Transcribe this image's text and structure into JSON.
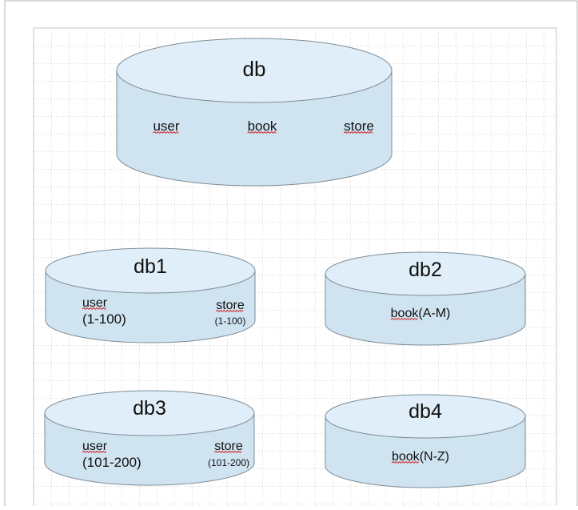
{
  "diagram": {
    "databases": [
      {
        "title": "db",
        "tables": [
          {
            "name": "user",
            "range": ""
          },
          {
            "name": "book",
            "range": ""
          },
          {
            "name": "store",
            "range": ""
          }
        ]
      },
      {
        "title": "db1",
        "tables": [
          {
            "name": "user",
            "range": "(1-100)"
          },
          {
            "name": "store",
            "range": "(1-100)"
          }
        ]
      },
      {
        "title": "db2",
        "tables": [
          {
            "name": "book",
            "range": "(A-M)"
          }
        ]
      },
      {
        "title": "db3",
        "tables": [
          {
            "name": "user",
            "range": "(101-200)"
          },
          {
            "name": "store",
            "range": "(101-200)"
          }
        ]
      },
      {
        "title": "db4",
        "tables": [
          {
            "name": "book",
            "range": "(N-Z)"
          }
        ]
      }
    ],
    "colors": {
      "cylinder_top": "#dfeef8",
      "cylinder_body": "#cfe3f1",
      "cylinder_stroke": "#7f8c95",
      "grid": "#b9b9b9",
      "spellcheck_underline": "#d42020"
    }
  }
}
